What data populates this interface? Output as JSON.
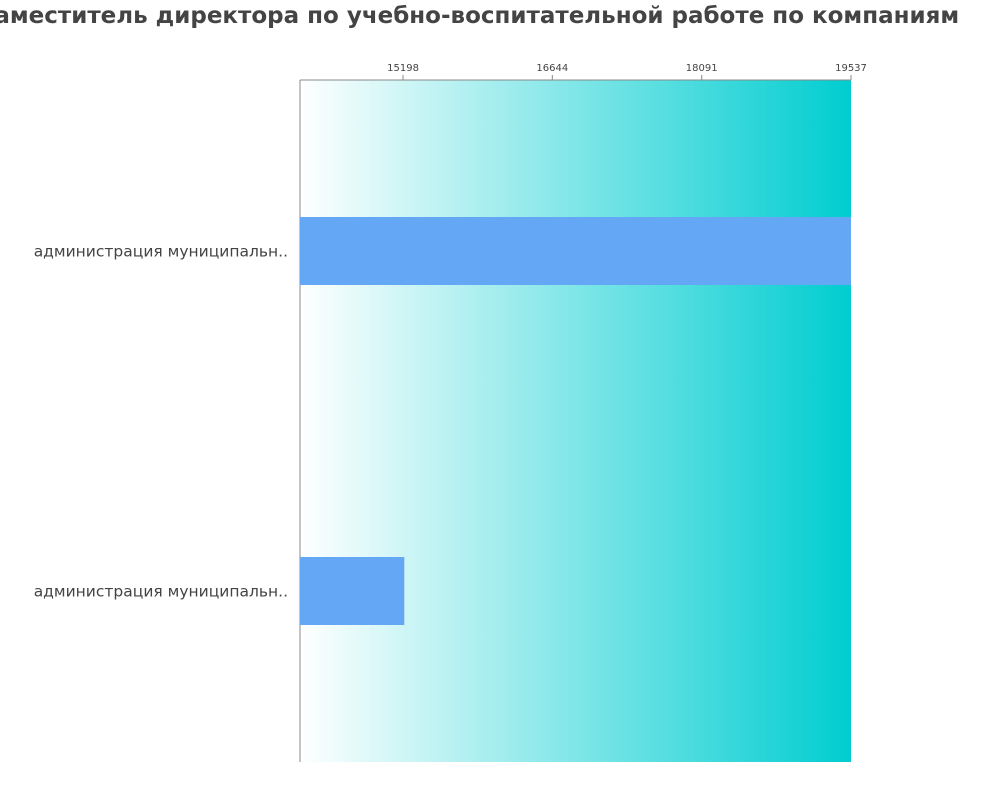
{
  "colors": {
    "bar": "#64a8f5",
    "gradient_start": "#ffffff",
    "gradient_end": "#00cdd0",
    "axis": "#888888",
    "text": "#444444"
  },
  "chart_data": {
    "type": "bar",
    "orientation": "horizontal",
    "title": "Заместитель директора по учебно-воспитательной работе по компаниям",
    "categories": [
      "администрация муниципальн..",
      "администрация муниципальн.."
    ],
    "values": [
      19537,
      15210
    ],
    "xlim": [
      14200,
      19537
    ],
    "x_tick_labels": [
      "15198",
      "16644",
      "18091",
      "19537"
    ],
    "x_ticks": [
      15198,
      16644,
      18091,
      19537
    ],
    "x_axis_position": "top",
    "grid": false,
    "legend": "none",
    "xlabel": "",
    "ylabel": ""
  }
}
